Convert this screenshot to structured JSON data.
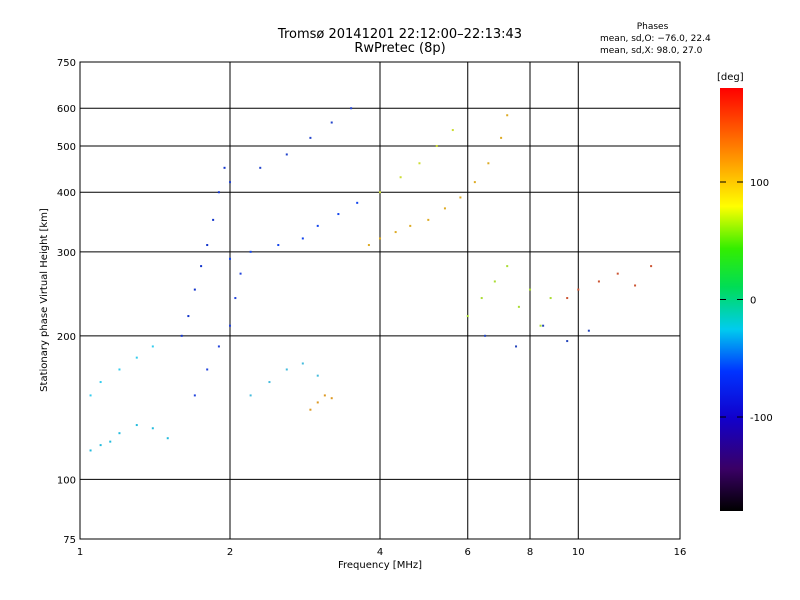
{
  "header": {
    "title": "Tromsø 20141201 22:12:00–22:13:43",
    "subtitle": "RwPretec (8p)",
    "stats_heading": "Phases",
    "stats_o": "mean, sd,O: −76.0, 22.4",
    "stats_x": "mean, sd,X:  98.0, 27.0"
  },
  "chart_data": {
    "type": "scatter",
    "title": "Tromsø 20141201 22:12:00–22:13:43",
    "subtitle": "RwPretec (8p)",
    "xlabel": "Frequency [MHz]",
    "ylabel": "Stationary phase Virtual Height [km]",
    "x_scale": "log",
    "y_scale": "log",
    "xlim": [
      1,
      16
    ],
    "ylim": [
      75,
      750
    ],
    "x_ticks": [
      1,
      2,
      4,
      6,
      8,
      10,
      16
    ],
    "x_tick_labels": [
      "1",
      "2",
      "4",
      "6",
      "8",
      "10",
      "16"
    ],
    "y_ticks": [
      75,
      100,
      200,
      300,
      400,
      500,
      600,
      750
    ],
    "y_tick_labels": [
      "75",
      "100",
      "200",
      "300",
      "400",
      "500",
      "600",
      "750"
    ],
    "grid": true,
    "colorbar": {
      "label": "[deg]",
      "range": [
        -180,
        180
      ],
      "ticks": [
        100,
        0,
        -100
      ],
      "tick_labels": [
        "100",
        "0",
        "-100"
      ]
    },
    "series": [
      {
        "x": [
          1.05,
          1.1,
          1.15,
          1.2,
          1.3,
          1.4,
          1.5
        ],
        "y": [
          115,
          118,
          120,
          125,
          130,
          128,
          122
        ],
        "color": "#22bbdd"
      },
      {
        "x": [
          1.05,
          1.1,
          1.2,
          1.3,
          1.4
        ],
        "y": [
          150,
          160,
          170,
          180,
          190
        ],
        "color": "#33ccee"
      },
      {
        "x": [
          1.6,
          1.65,
          1.7,
          1.75,
          1.8,
          1.85,
          1.9,
          1.95
        ],
        "y": [
          200,
          220,
          250,
          280,
          310,
          350,
          400,
          450
        ],
        "color": "#1133cc"
      },
      {
        "x": [
          1.7,
          1.8,
          1.9,
          2.0,
          2.05,
          2.1
        ],
        "y": [
          150,
          170,
          190,
          210,
          240,
          270
        ],
        "color": "#2244dd"
      },
      {
        "x": [
          2.0,
          2.2,
          2.5,
          2.8,
          3.0,
          3.3,
          3.6
        ],
        "y": [
          290,
          300,
          310,
          320,
          340,
          360,
          380
        ],
        "color": "#1144ee"
      },
      {
        "x": [
          2.0,
          2.3,
          2.6,
          2.9,
          3.2,
          3.5
        ],
        "y": [
          420,
          450,
          480,
          520,
          560,
          600
        ],
        "color": "#2244cc"
      },
      {
        "x": [
          2.2,
          2.4,
          2.6,
          2.8,
          3.0
        ],
        "y": [
          150,
          160,
          170,
          175,
          165
        ],
        "color": "#44bbdd"
      },
      {
        "x": [
          2.9,
          3.0,
          3.1,
          3.2
        ],
        "y": [
          140,
          145,
          150,
          148
        ],
        "color": "#dd9922"
      },
      {
        "x": [
          3.8,
          4.0,
          4.3,
          4.6,
          5.0,
          5.4,
          5.8,
          6.2,
          6.6,
          7.0,
          7.2
        ],
        "y": [
          310,
          320,
          330,
          340,
          350,
          370,
          390,
          420,
          460,
          520,
          580
        ],
        "color": "#ddaa22"
      },
      {
        "x": [
          4.0,
          4.4,
          4.8,
          5.2,
          5.6
        ],
        "y": [
          400,
          430,
          460,
          500,
          540
        ],
        "color": "#ccdd33"
      },
      {
        "x": [
          6.0,
          6.4,
          6.8,
          7.2,
          7.6,
          8.0,
          8.4,
          8.8
        ],
        "y": [
          220,
          240,
          260,
          280,
          230,
          250,
          210,
          240
        ],
        "color": "#aadd33"
      },
      {
        "x": [
          9.5,
          10.0,
          11.0,
          12.0,
          13.0,
          14.0
        ],
        "y": [
          240,
          250,
          260,
          270,
          255,
          280
        ],
        "color": "#cc5533"
      },
      {
        "x": [
          6.5,
          7.5,
          8.5,
          9.5,
          10.5
        ],
        "y": [
          200,
          190,
          210,
          195,
          205
        ],
        "color": "#2244bb"
      }
    ]
  }
}
